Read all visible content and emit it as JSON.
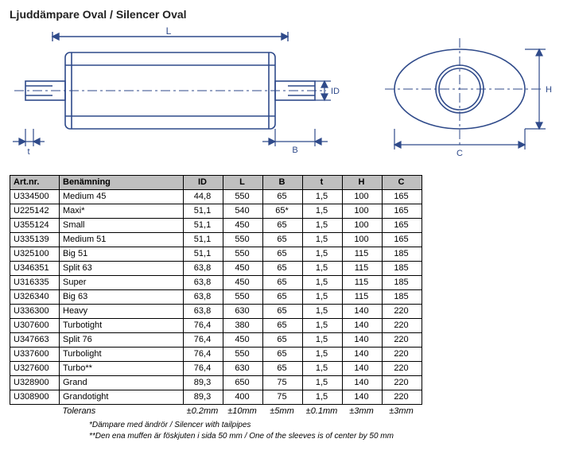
{
  "title": "Ljuddämpare Oval / Silencer Oval",
  "diagram": {
    "labels": {
      "L": "L",
      "t": "t",
      "B": "B",
      "ID": "ID",
      "C": "C",
      "H": "H"
    },
    "stroke": "#2f4a8a",
    "fill": "#ffffff"
  },
  "table": {
    "header_bg": "#bfbfbf",
    "columns": [
      "Art.nr.",
      "Benämning",
      "ID",
      "L",
      "B",
      "t",
      "H",
      "C"
    ],
    "rows": [
      [
        "U334500",
        "Medium 45",
        "44,8",
        "550",
        "65",
        "1,5",
        "100",
        "165"
      ],
      [
        "U225142",
        "Maxi*",
        "51,1",
        "540",
        "65*",
        "1,5",
        "100",
        "165"
      ],
      [
        "U355124",
        "Small",
        "51,1",
        "450",
        "65",
        "1,5",
        "100",
        "165"
      ],
      [
        "U335139",
        "Medium 51",
        "51,1",
        "550",
        "65",
        "1,5",
        "100",
        "165"
      ],
      [
        "U325100",
        "Big 51",
        "51,1",
        "550",
        "65",
        "1,5",
        "115",
        "185"
      ],
      [
        "U346351",
        "Split 63",
        "63,8",
        "450",
        "65",
        "1,5",
        "115",
        "185"
      ],
      [
        "U316335",
        "Super",
        "63,8",
        "450",
        "65",
        "1,5",
        "115",
        "185"
      ],
      [
        "U326340",
        "Big 63",
        "63,8",
        "550",
        "65",
        "1,5",
        "115",
        "185"
      ],
      [
        "U336300",
        "Heavy",
        "63,8",
        "630",
        "65",
        "1,5",
        "140",
        "220"
      ],
      [
        "U307600",
        "Turbotight",
        "76,4",
        "380",
        "65",
        "1,5",
        "140",
        "220"
      ],
      [
        "U347663",
        "Split 76",
        "76,4",
        "450",
        "65",
        "1,5",
        "140",
        "220"
      ],
      [
        "U337600",
        "Turbolight",
        "76,4",
        "550",
        "65",
        "1,5",
        "140",
        "220"
      ],
      [
        "U327600",
        "Turbo**",
        "76,4",
        "630",
        "65",
        "1,5",
        "140",
        "220"
      ],
      [
        "U328900",
        "Grand",
        "89,3",
        "650",
        "75",
        "1,5",
        "140",
        "220"
      ],
      [
        "U308900",
        "Grandotight",
        "89,3",
        "400",
        "75",
        "1,5",
        "140",
        "220"
      ]
    ],
    "tolerance_label": "Tolerans",
    "tolerances": [
      "±0.2mm",
      "±10mm",
      "±5mm",
      "±0.1mm",
      "±3mm",
      "±3mm"
    ]
  },
  "footnotes": [
    "*Dämpare med ändrör / Silencer with tailpipes",
    "**Den ena muffen är föskjuten i sida 50 mm / One of the sleeves is of center by 50 mm"
  ]
}
